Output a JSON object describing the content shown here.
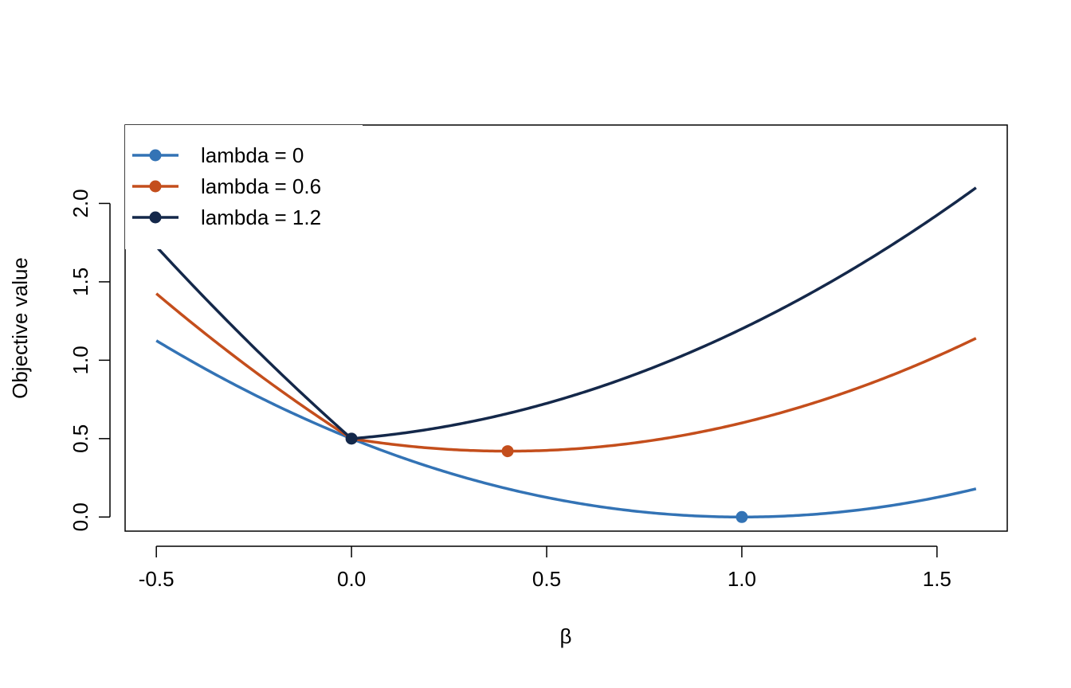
{
  "chart_data": {
    "type": "line",
    "title": "",
    "xlabel": "β",
    "ylabel": "Objective value",
    "xlim": [
      -0.58,
      1.68
    ],
    "ylim": [
      -0.09,
      2.5
    ],
    "xticks": [
      -0.5,
      0.0,
      0.5,
      1.0,
      1.5
    ],
    "xtick_labels": [
      "-0.5",
      "0.0",
      "0.5",
      "1.0",
      "1.5"
    ],
    "yticks": [
      0.0,
      0.5,
      1.0,
      1.5,
      2.0
    ],
    "ytick_labels": [
      "0.0",
      "0.5",
      "1.0",
      "1.5",
      "2.0"
    ],
    "x_range": [
      -0.5,
      1.6
    ],
    "legend_position": "top-left",
    "grid": false,
    "series": [
      {
        "name": "lambda = 0",
        "lambda": 0,
        "color": "#3373b5",
        "minimum": {
          "x": 1.0,
          "y": 0.0
        }
      },
      {
        "name": "lambda = 0.6",
        "lambda": 0.6,
        "color": "#c44e1c",
        "minimum": {
          "x": 0.4,
          "y": 0.42
        }
      },
      {
        "name": "lambda = 1.2",
        "lambda": 1.2,
        "color": "#14284a",
        "minimum": {
          "x": 0.0,
          "y": 0.5
        }
      }
    ]
  }
}
